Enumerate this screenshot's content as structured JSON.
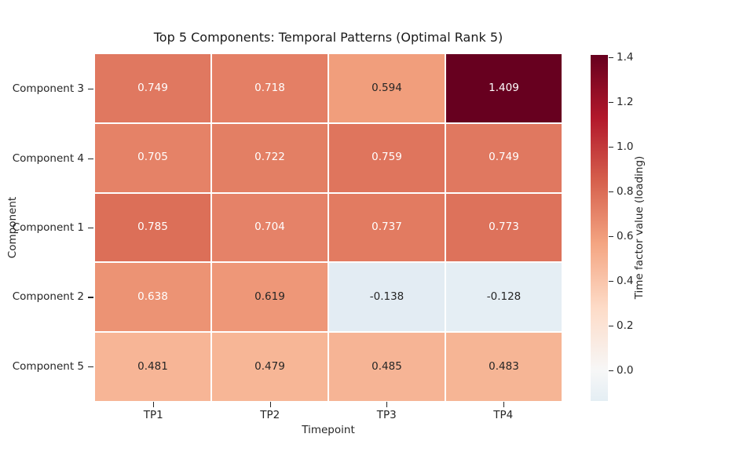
{
  "figure": {
    "background": "#ffffff"
  },
  "chart_data": {
    "type": "heatmap",
    "title": "Top 5 Components: Temporal Patterns (Optimal Rank 5)",
    "xlabel": "Timepoint",
    "ylabel": "Component",
    "x_categories": [
      "TP1",
      "TP2",
      "TP3",
      "TP4"
    ],
    "y_categories": [
      "Component 3",
      "Component 4",
      "Component 1",
      "Component 2",
      "Component 5"
    ],
    "values": [
      [
        0.749,
        0.718,
        0.594,
        1.409
      ],
      [
        0.705,
        0.722,
        0.759,
        0.749
      ],
      [
        0.785,
        0.704,
        0.737,
        0.773
      ],
      [
        0.638,
        0.619,
        -0.138,
        -0.128
      ],
      [
        0.481,
        0.479,
        0.485,
        0.483
      ]
    ],
    "cells": [
      [
        {
          "label": "0.749",
          "bg": "#e07860",
          "fg": "#ffffff"
        },
        {
          "label": "0.718",
          "bg": "#e47f65",
          "fg": "#ffffff"
        },
        {
          "label": "0.594",
          "bg": "#f19e7c",
          "fg": "#262626"
        },
        {
          "label": "1.409",
          "bg": "#67001f",
          "fg": "#ffffff"
        }
      ],
      [
        {
          "label": "0.705",
          "bg": "#e58267",
          "fg": "#ffffff"
        },
        {
          "label": "0.722",
          "bg": "#e37f64",
          "fg": "#ffffff"
        },
        {
          "label": "0.759",
          "bg": "#df755d",
          "fg": "#ffffff"
        },
        {
          "label": "0.749",
          "bg": "#e07860",
          "fg": "#ffffff"
        }
      ],
      [
        {
          "label": "0.785",
          "bg": "#dc6f58",
          "fg": "#ffffff"
        },
        {
          "label": "0.704",
          "bg": "#e58268",
          "fg": "#ffffff"
        },
        {
          "label": "0.737",
          "bg": "#e27b61",
          "fg": "#ffffff"
        },
        {
          "label": "0.773",
          "bg": "#dd725b",
          "fg": "#ffffff"
        }
      ],
      [
        {
          "label": "0.638",
          "bg": "#ec9374",
          "fg": "#ffffff"
        },
        {
          "label": "0.619",
          "bg": "#ee9778",
          "fg": "#262626"
        },
        {
          "label": "-0.138",
          "bg": "#e3ecf3",
          "fg": "#262626"
        },
        {
          "label": "-0.128",
          "bg": "#e5eef4",
          "fg": "#262626"
        }
      ],
      [
        {
          "label": "0.481",
          "bg": "#f7b596",
          "fg": "#262626"
        },
        {
          "label": "0.479",
          "bg": "#f7b696",
          "fg": "#262626"
        },
        {
          "label": "0.485",
          "bg": "#f6b495",
          "fg": "#262626"
        },
        {
          "label": "0.483",
          "bg": "#f6b595",
          "fg": "#262626"
        }
      ]
    ],
    "grid_line_color": "#ffffff",
    "colorbar": {
      "label": "Time factor value (loading)",
      "vmin": -0.138,
      "vmax": 1.409,
      "ticks": [
        {
          "label": "0.0",
          "value": 0.0
        },
        {
          "label": "0.2",
          "value": 0.2
        },
        {
          "label": "0.4",
          "value": 0.4
        },
        {
          "label": "0.6",
          "value": 0.6
        },
        {
          "label": "0.8",
          "value": 0.8
        },
        {
          "label": "1.0",
          "value": 1.0
        },
        {
          "label": "1.2",
          "value": 1.2
        },
        {
          "label": "1.4",
          "value": 1.4
        }
      ],
      "gradient": [
        {
          "pos": 0.0,
          "color": "#e4eef4"
        },
        {
          "pos": 0.089,
          "color": "#f7f7f7"
        },
        {
          "pos": 0.271,
          "color": "#fddbc7"
        },
        {
          "pos": 0.454,
          "color": "#f4a582"
        },
        {
          "pos": 0.636,
          "color": "#d6604d"
        },
        {
          "pos": 0.818,
          "color": "#b2182b"
        },
        {
          "pos": 1.0,
          "color": "#67001f"
        }
      ]
    }
  }
}
